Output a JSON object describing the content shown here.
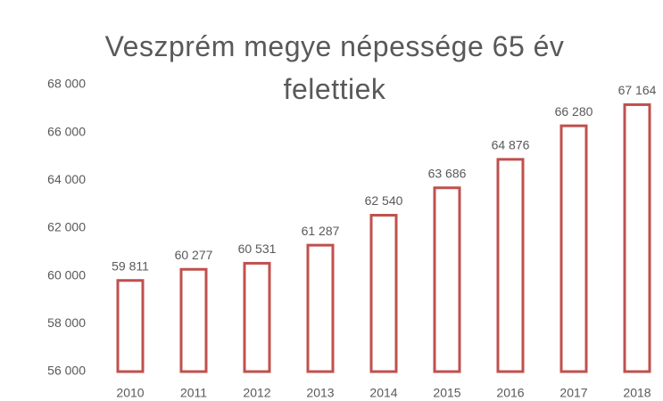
{
  "chart_data": {
    "type": "bar",
    "title": "Veszprém megye népessége 65 év felettiek",
    "categories": [
      "2010",
      "2011",
      "2012",
      "2013",
      "2014",
      "2015",
      "2016",
      "2017",
      "2018"
    ],
    "values": [
      59811,
      60277,
      60531,
      61287,
      62540,
      63686,
      64876,
      66280,
      67164
    ],
    "value_labels": [
      "59 811",
      "60 277",
      "60 531",
      "61 287",
      "62 540",
      "63 686",
      "64 876",
      "66 280",
      "67 164"
    ],
    "color": "#c0504d",
    "ylim": [
      56000,
      68000
    ],
    "yticks": [
      {
        "value": 56000,
        "label": "56 000"
      },
      {
        "value": 58000,
        "label": "58 000"
      },
      {
        "value": 60000,
        "label": "60 000"
      },
      {
        "value": 62000,
        "label": "62 000"
      },
      {
        "value": 64000,
        "label": "64 000"
      },
      {
        "value": 66000,
        "label": "66 000"
      },
      {
        "value": 68000,
        "label": "68 000"
      }
    ],
    "grid": false
  }
}
